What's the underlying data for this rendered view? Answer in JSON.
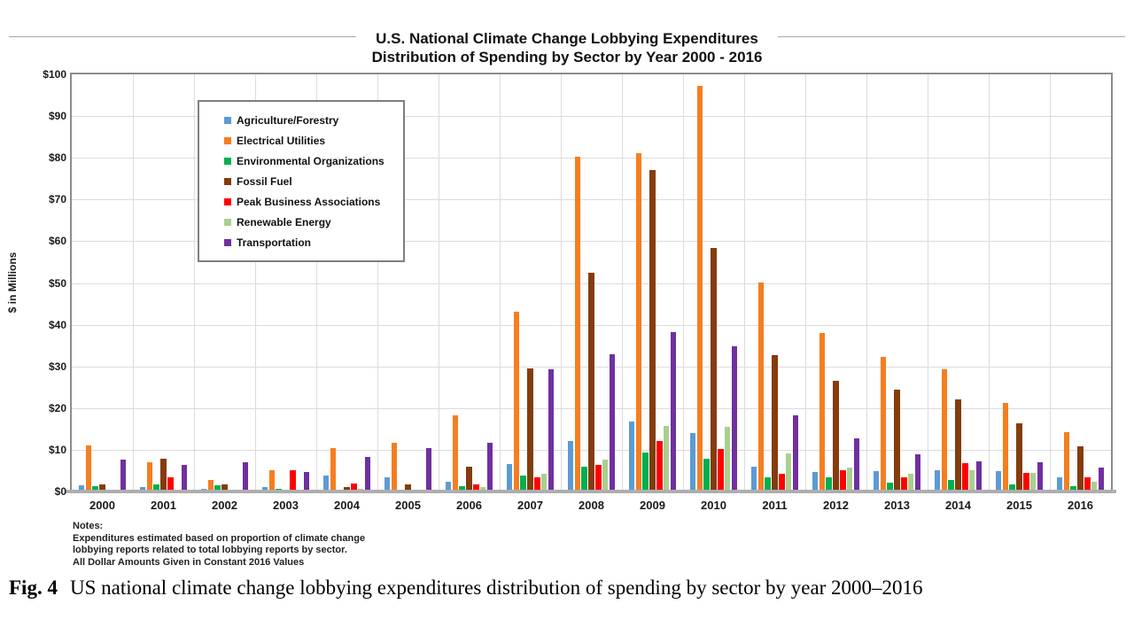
{
  "figure": {
    "title_line1": "U.S. National Climate Change Lobbying Expenditures",
    "title_line2": "Distribution of Spending by Sector by Year 2000 - 2016",
    "notes_lines": [
      "Notes:",
      "Expenditures estimated based on proportion of climate change",
      "lobbying reports related to total lobbying reports by sector.",
      "All Dollar Amounts Given in Constant 2016 Values"
    ],
    "caption_label": "Fig. 4",
    "caption_text": "US national climate change lobbying expenditures distribution of spending by sector by year 2000–2016"
  },
  "chart_data": {
    "type": "bar",
    "title": "U.S. National Climate Change Lobbying Expenditures — Distribution of Spending by Sector by Year 2000 - 2016",
    "xlabel": "",
    "ylabel": "$ in Millions",
    "ylim": [
      0,
      100
    ],
    "ytick_step": 10,
    "ytick_labels": [
      "$0",
      "$10",
      "$20",
      "$30",
      "$40",
      "$50",
      "$60",
      "$70",
      "$80",
      "$90",
      "$100"
    ],
    "grid": true,
    "legend_position": "upper-left-inside",
    "categories": [
      "2000",
      "2001",
      "2002",
      "2003",
      "2004",
      "2005",
      "2006",
      "2007",
      "2008",
      "2009",
      "2010",
      "2011",
      "2012",
      "2013",
      "2014",
      "2015",
      "2016"
    ],
    "series": [
      {
        "name": "Agriculture/Forestry",
        "color": "#5B9BD5",
        "values": [
          1.5,
          1.0,
          0.6,
          1.1,
          3.8,
          3.3,
          2.4,
          6.6,
          12.0,
          16.8,
          14.0,
          5.9,
          4.6,
          4.8,
          5.0,
          4.8,
          3.5
        ]
      },
      {
        "name": "Electrical Utilities",
        "color": "#F57E20",
        "values": [
          11.0,
          7.0,
          2.7,
          5.0,
          10.5,
          11.6,
          18.2,
          43.0,
          80.3,
          81.2,
          97.2,
          50.2,
          38.0,
          32.2,
          29.2,
          21.3,
          14.2
        ]
      },
      {
        "name": "Environmental Organizations",
        "color": "#00B050",
        "values": [
          1.2,
          1.6,
          1.4,
          0.7,
          0.4,
          0.4,
          1.3,
          3.9,
          6.0,
          9.3,
          7.8,
          3.3,
          3.3,
          2.1,
          2.7,
          1.8,
          1.2
        ]
      },
      {
        "name": "Fossil Fuel",
        "color": "#843C0C",
        "values": [
          1.6,
          7.8,
          1.6,
          0.5,
          1.0,
          1.6,
          5.9,
          29.5,
          52.4,
          77.0,
          58.4,
          32.6,
          26.5,
          24.4,
          22.0,
          16.3,
          10.9
        ]
      },
      {
        "name": "Peak Business Associations",
        "color": "#FF0000",
        "values": [
          0.2,
          3.3,
          0.2,
          5.0,
          2.0,
          0.5,
          1.8,
          3.4,
          6.4,
          12.2,
          10.1,
          4.3,
          5.1,
          3.5,
          6.8,
          4.5,
          3.3
        ]
      },
      {
        "name": "Renewable Energy",
        "color": "#A9D08E",
        "values": [
          0.5,
          0.3,
          0.2,
          0.2,
          0.6,
          0.4,
          1.0,
          4.3,
          7.6,
          15.8,
          15.4,
          9.1,
          5.8,
          4.3,
          5.1,
          4.4,
          2.3
        ]
      },
      {
        "name": "Transportation",
        "color": "#7030A0",
        "values": [
          7.6,
          6.3,
          7.0,
          4.7,
          8.2,
          10.3,
          11.7,
          29.3,
          33.0,
          38.2,
          34.8,
          18.2,
          12.7,
          9.0,
          7.2,
          7.0,
          5.8
        ]
      }
    ]
  }
}
